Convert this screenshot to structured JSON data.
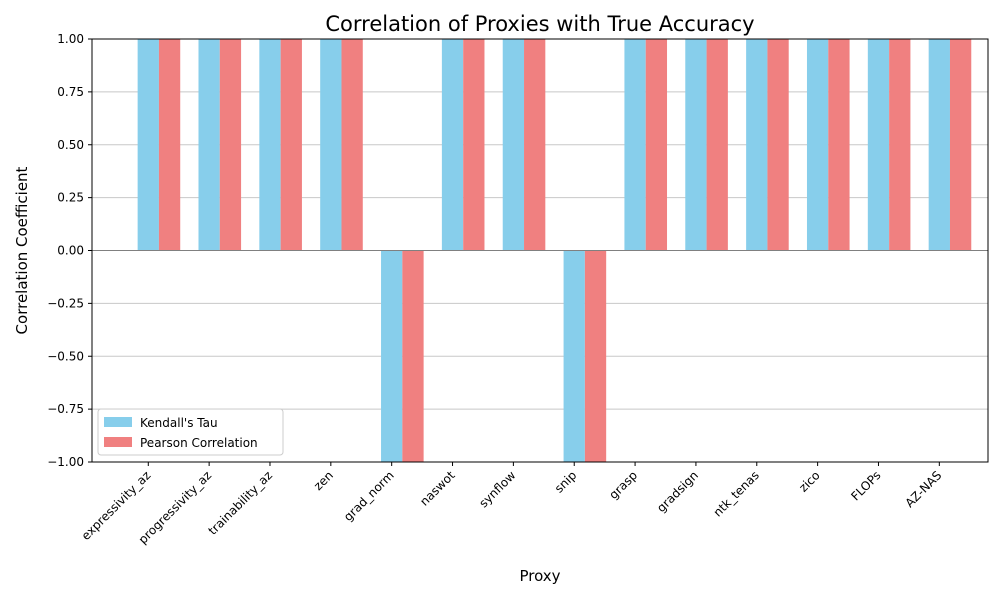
{
  "chart_data": {
    "type": "bar",
    "title": "Correlation of Proxies with True Accuracy",
    "xlabel": "Proxy",
    "ylabel": "Correlation Coefficient",
    "categories": [
      "expressivity_az",
      "progressivity_az",
      "trainability_az",
      "zen",
      "grad_norm",
      "naswot",
      "synflow",
      "snip",
      "grasp",
      "gradsign",
      "ntk_tenas",
      "zico",
      "FLOPs",
      "AZ-NAS"
    ],
    "series": [
      {
        "name": "Kendall's Tau",
        "color": "#87ceeb",
        "values": [
          1,
          1,
          1,
          1,
          -1,
          1,
          1,
          -1,
          1,
          1,
          1,
          1,
          1,
          1
        ]
      },
      {
        "name": "Pearson Correlation",
        "color": "#f08080",
        "values": [
          1,
          1,
          1,
          1,
          -1,
          1,
          1,
          -1,
          1,
          1,
          1,
          1,
          1,
          1
        ]
      }
    ],
    "ylim": [
      -1,
      1
    ],
    "yticks": [
      "1.00",
      "0.75",
      "0.50",
      "0.25",
      "0.00",
      "−0.25",
      "−0.50",
      "−0.75",
      "−1.00"
    ],
    "ytick_values": [
      1,
      0.75,
      0.5,
      0.25,
      0,
      -0.25,
      -0.5,
      -0.75,
      -1
    ],
    "grid": "y",
    "legend": "lower-left"
  }
}
